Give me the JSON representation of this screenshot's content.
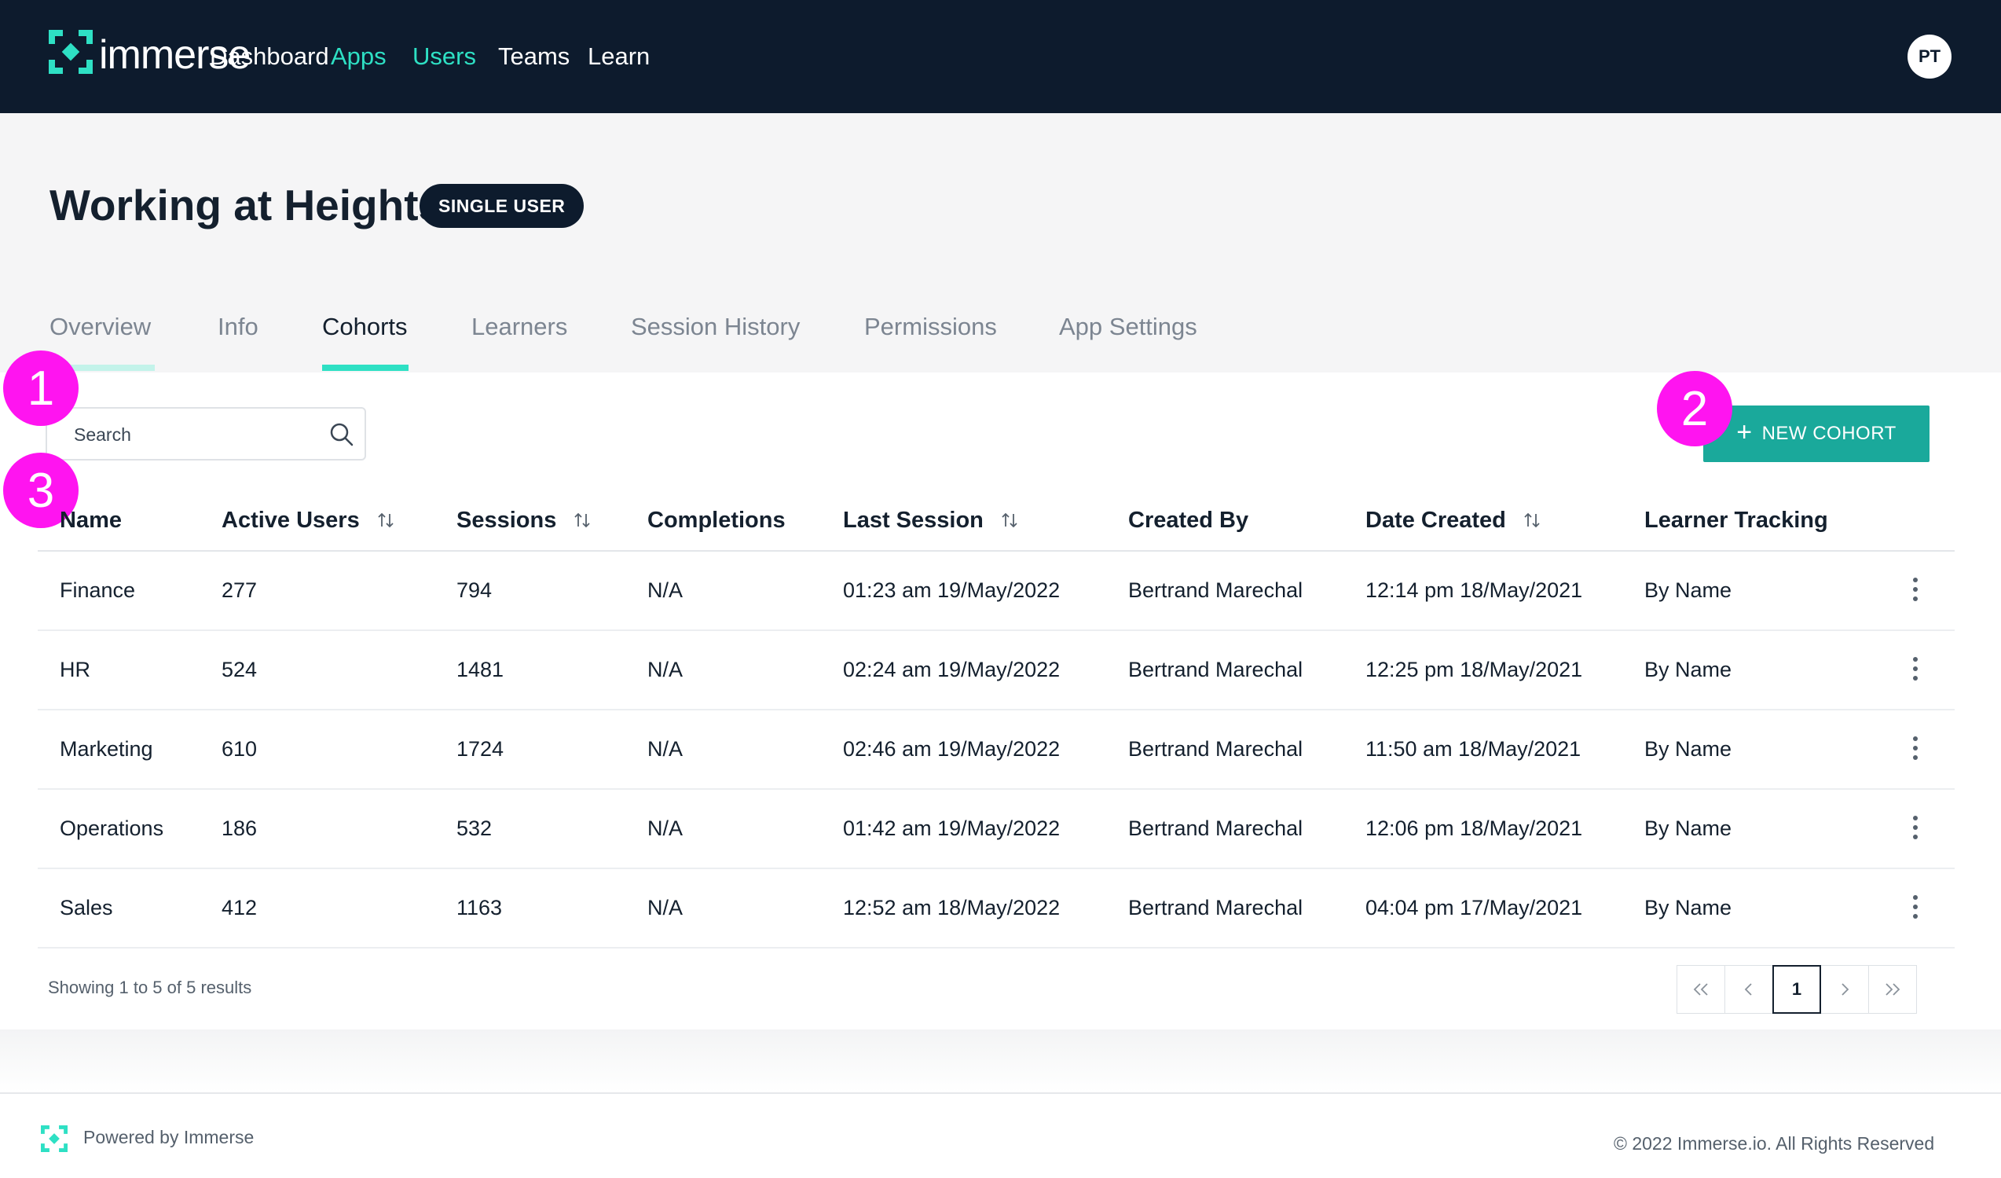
{
  "brand": {
    "name": "immerse",
    "accent": "#2ee0c4",
    "nav_bg": "#0d1b2d",
    "button_color": "#1aa99b"
  },
  "nav": {
    "items": [
      {
        "label": "Dashboard",
        "active": false
      },
      {
        "label": "Apps",
        "active": true
      },
      {
        "label": "Users",
        "active": true
      },
      {
        "label": "Teams",
        "active": false
      },
      {
        "label": "Learn",
        "active": false
      }
    ],
    "avatar_initials": "PT"
  },
  "header": {
    "title": "Working at Heights",
    "badge": "SINGLE USER",
    "tabs": [
      {
        "label": "Overview"
      },
      {
        "label": "Info"
      },
      {
        "label": "Cohorts",
        "active": true
      },
      {
        "label": "Learners"
      },
      {
        "label": "Session History"
      },
      {
        "label": "Permissions"
      },
      {
        "label": "App Settings"
      }
    ]
  },
  "toolbar": {
    "search_placeholder": "Search",
    "new_cohort_label": "NEW COHORT"
  },
  "markers": [
    "1",
    "2",
    "3"
  ],
  "table": {
    "columns": [
      "Name",
      "Active Users",
      "Sessions",
      "Completions",
      "Last Session",
      "Created By",
      "Date Created",
      "Learner Tracking"
    ],
    "rows": [
      {
        "name": "Finance",
        "active_users": "277",
        "sessions": "794",
        "completions": "N/A",
        "last_session": "01:23 am 19/May/2022",
        "created_by": "Bertrand Marechal",
        "date_created": "12:14 pm 18/May/2021",
        "tracking": "By Name"
      },
      {
        "name": "HR",
        "active_users": "524",
        "sessions": "1481",
        "completions": "N/A",
        "last_session": "02:24 am 19/May/2022",
        "created_by": "Bertrand Marechal",
        "date_created": "12:25 pm 18/May/2021",
        "tracking": "By Name"
      },
      {
        "name": "Marketing",
        "active_users": "610",
        "sessions": "1724",
        "completions": "N/A",
        "last_session": "02:46 am 19/May/2022",
        "created_by": "Bertrand Marechal",
        "date_created": "11:50 am 18/May/2021",
        "tracking": "By Name"
      },
      {
        "name": "Operations",
        "active_users": "186",
        "sessions": "532",
        "completions": "N/A",
        "last_session": "01:42 am 19/May/2022",
        "created_by": "Bertrand Marechal",
        "date_created": "12:06 pm 18/May/2021",
        "tracking": "By Name"
      },
      {
        "name": "Sales",
        "active_users": "412",
        "sessions": "1163",
        "completions": "N/A",
        "last_session": "12:52 am 18/May/2022",
        "created_by": "Bertrand Marechal",
        "date_created": "04:04 pm 17/May/2021",
        "tracking": "By Name"
      }
    ]
  },
  "pagination": {
    "results_text": "Showing 1 to 5 of 5 results",
    "current_page": "1"
  },
  "footer": {
    "powered_by": "Powered by Immerse",
    "copyright": "© 2022 Immerse.io. All Rights Reserved"
  }
}
